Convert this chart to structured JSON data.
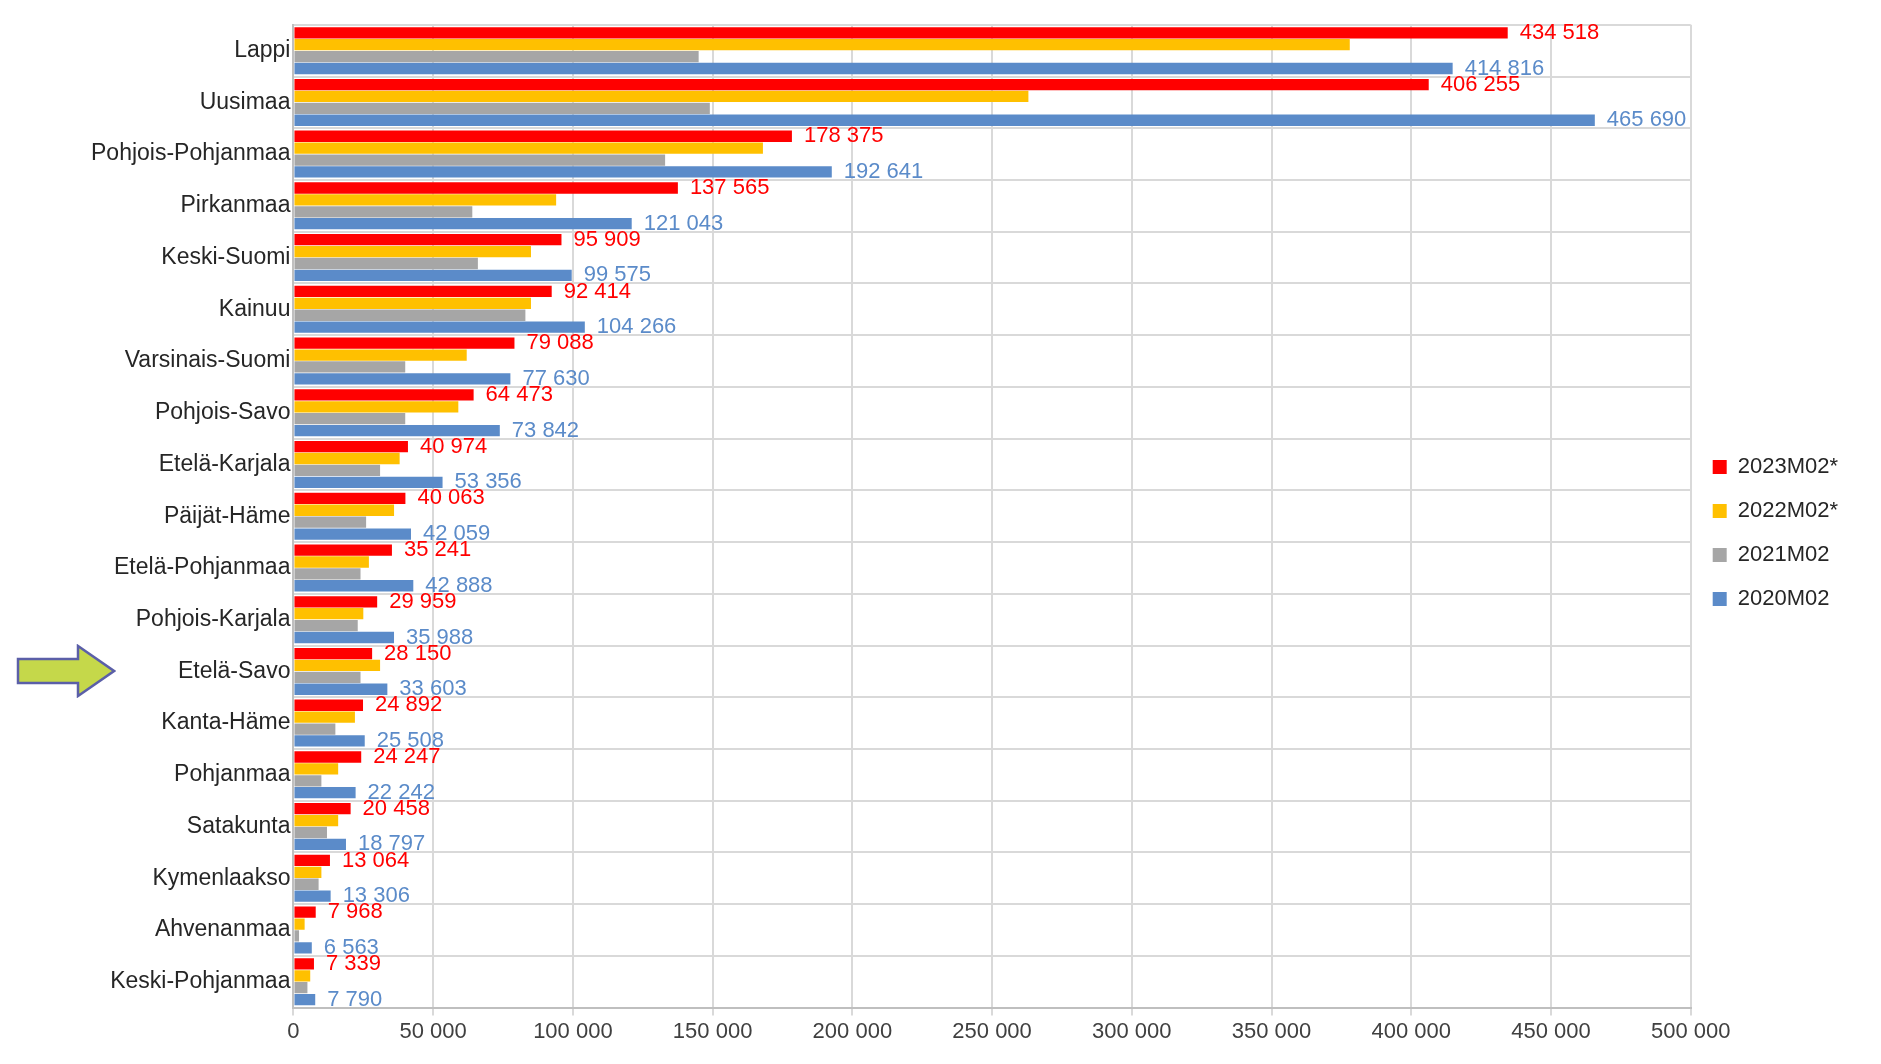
{
  "chart_data": {
    "type": "bar",
    "orientation": "horizontal",
    "categories": [
      "Lappi",
      "Uusimaa",
      "Pohjois-Pohjanmaa",
      "Pirkanmaa",
      "Keski-Suomi",
      "Kainuu",
      "Varsinais-Suomi",
      "Pohjois-Savo",
      "Etelä-Karjala",
      "Päijät-Häme",
      "Etelä-Pohjanmaa",
      "Pohjois-Karjala",
      "Etelä-Savo",
      "Kanta-Häme",
      "Pohjanmaa",
      "Satakunta",
      "Kymenlaakso",
      "Ahvenanmaa",
      "Keski-Pohjanmaa"
    ],
    "series": [
      {
        "name": "2023M02*",
        "color": "#ff0000",
        "values": [
          434518,
          406255,
          178375,
          137565,
          95909,
          92414,
          79088,
          64473,
          40974,
          40063,
          35241,
          29959,
          28150,
          24892,
          24247,
          20458,
          13064,
          7968,
          7339
        ],
        "value_labels": [
          "434 518",
          "406 255",
          "178 375",
          "137 565",
          "95 909",
          "92 414",
          "79 088",
          "64 473",
          "40 974",
          "40 063",
          "35 241",
          "29 959",
          "28 150",
          "24 892",
          "24 247",
          "20 458",
          "13 064",
          "7 968",
          "7 339"
        ]
      },
      {
        "name": "2022M02*",
        "color": "#ffc000",
        "values": [
          378000,
          263000,
          168000,
          94000,
          85000,
          85000,
          62000,
          59000,
          38000,
          36000,
          27000,
          25000,
          31000,
          22000,
          16000,
          16000,
          10000,
          4000,
          6000
        ]
      },
      {
        "name": "2021M02",
        "color": "#a6a6a6",
        "values": [
          145000,
          149000,
          133000,
          64000,
          66000,
          83000,
          40000,
          40000,
          31000,
          26000,
          24000,
          23000,
          24000,
          15000,
          10000,
          12000,
          9000,
          2000,
          5000
        ]
      },
      {
        "name": "2020M02",
        "color": "#5b8bc9",
        "values": [
          414816,
          465690,
          192641,
          121043,
          99575,
          104266,
          77630,
          73842,
          53356,
          42059,
          42888,
          35988,
          33603,
          25508,
          22242,
          18797,
          13306,
          6563,
          7790
        ],
        "value_labels": [
          "414 816",
          "465 690",
          "192 641",
          "121 043",
          "99 575",
          "104 266",
          "77 630",
          "73 842",
          "53 356",
          "42 059",
          "42 888",
          "35 988",
          "33 603",
          "25 508",
          "22 242",
          "18 797",
          "13 306",
          "6 563",
          "7 790"
        ]
      }
    ],
    "xlim": [
      0,
      500000
    ],
    "xticks": [
      {
        "value": 0,
        "label": "0"
      },
      {
        "value": 50000,
        "label": "50 000"
      },
      {
        "value": 100000,
        "label": "100 000"
      },
      {
        "value": 150000,
        "label": "150 000"
      },
      {
        "value": 200000,
        "label": "200 000"
      },
      {
        "value": 250000,
        "label": "250 000"
      },
      {
        "value": 300000,
        "label": "300 000"
      },
      {
        "value": 350000,
        "label": "350 000"
      },
      {
        "value": 400000,
        "label": "400 000"
      },
      {
        "value": 450000,
        "label": "450 000"
      },
      {
        "value": 500000,
        "label": "500 000"
      }
    ],
    "grid": true,
    "legend": "right"
  }
}
